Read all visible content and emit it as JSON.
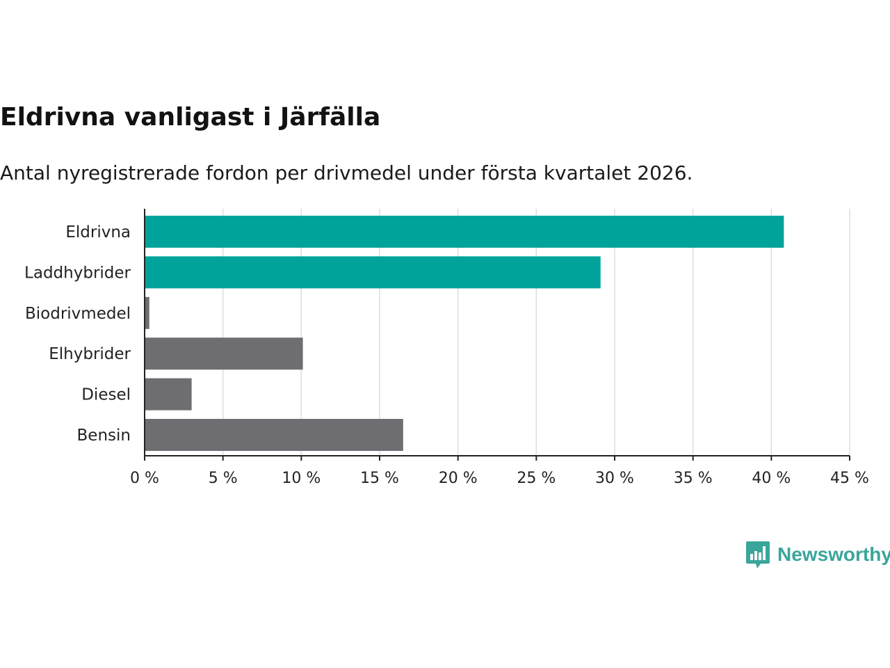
{
  "header": {
    "title": "Eldrivna vanligast i Järfälla",
    "subtitle": "Antal nyregistrerade fordon per drivmedel under första kvartalet 2026."
  },
  "brand": {
    "name": "Newsworthy",
    "icon": "bar-chart-speech-bubble-icon",
    "color": "#3aa59b"
  },
  "colors": {
    "highlight": "#00a39a",
    "muted": "#6e6d72",
    "grid": "#dddddd",
    "axis": "#222222"
  },
  "chart_data": {
    "type": "bar",
    "orientation": "horizontal",
    "title": "Eldrivna vanligast i Järfälla",
    "subtitle": "Antal nyregistrerade fordon per drivmedel under första kvartalet 2026.",
    "xlabel": "",
    "ylabel": "",
    "categories": [
      "Eldrivna",
      "Laddhybrider",
      "Biodrivmedel",
      "Elhybrider",
      "Diesel",
      "Bensin"
    ],
    "values": [
      40.8,
      29.1,
      0.3,
      10.1,
      3.0,
      16.5
    ],
    "highlighted": [
      true,
      true,
      false,
      false,
      false,
      false
    ],
    "xlim": [
      0,
      45
    ],
    "xticks": [
      0,
      5,
      10,
      15,
      20,
      25,
      30,
      35,
      40,
      45
    ],
    "xtick_labels": [
      "0 %",
      "5 %",
      "10 %",
      "15 %",
      "20 %",
      "25 %",
      "30 %",
      "35 %",
      "40 %",
      "45 %"
    ],
    "grid": true,
    "legend": "none"
  }
}
